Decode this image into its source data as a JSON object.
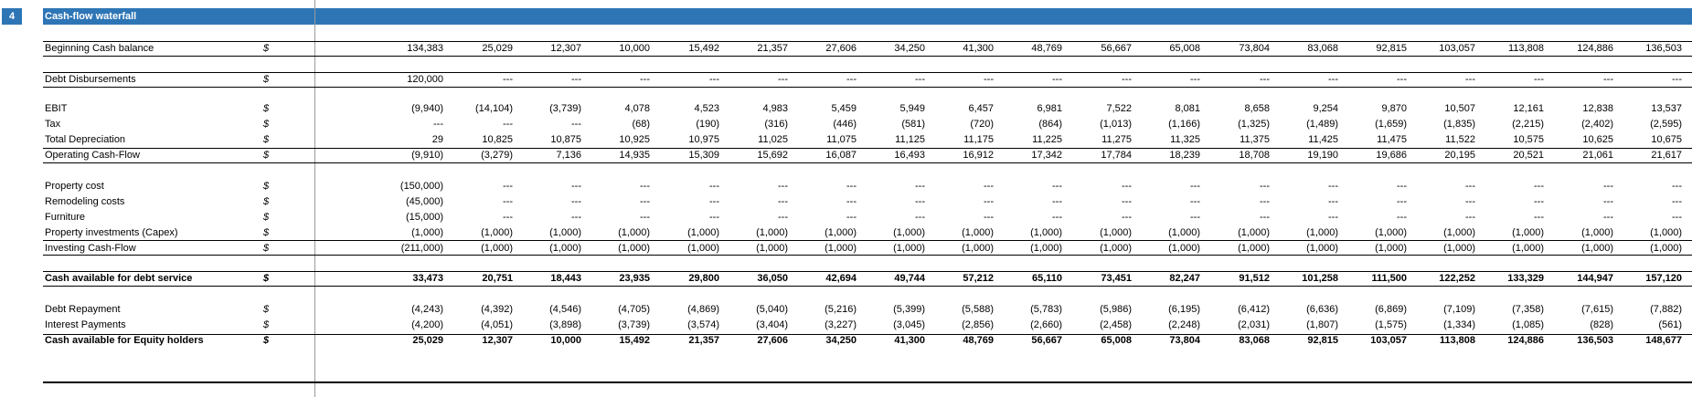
{
  "section_number": "4",
  "title": "Cash-flow waterfall",
  "rows": [
    {
      "id": "beginning-cash",
      "label": "Beginning Cash balance",
      "currency": "$",
      "bold": false,
      "values": [
        "134,383",
        "25,029",
        "12,307",
        "10,000",
        "15,492",
        "21,357",
        "27,606",
        "34,250",
        "41,300",
        "48,769",
        "56,667",
        "65,008",
        "73,804",
        "83,068",
        "92,815",
        "103,057",
        "113,808",
        "124,886",
        "136,503"
      ]
    },
    {
      "id": "debt-disbursements",
      "label": "Debt Disbursements",
      "currency": "$",
      "bold": false,
      "values": [
        "120,000",
        "---",
        "---",
        "---",
        "---",
        "---",
        "---",
        "---",
        "---",
        "---",
        "---",
        "---",
        "---",
        "---",
        "---",
        "---",
        "---",
        "---",
        "---"
      ]
    },
    {
      "id": "ebit",
      "label": "EBIT",
      "currency": "$",
      "bold": false,
      "values": [
        "(9,940)",
        "(14,104)",
        "(3,739)",
        "4,078",
        "4,523",
        "4,983",
        "5,459",
        "5,949",
        "6,457",
        "6,981",
        "7,522",
        "8,081",
        "8,658",
        "9,254",
        "9,870",
        "10,507",
        "12,161",
        "12,838",
        "13,537"
      ]
    },
    {
      "id": "tax",
      "label": "Tax",
      "currency": "$",
      "bold": false,
      "values": [
        "---",
        "---",
        "---",
        "(68)",
        "(190)",
        "(316)",
        "(446)",
        "(581)",
        "(720)",
        "(864)",
        "(1,013)",
        "(1,166)",
        "(1,325)",
        "(1,489)",
        "(1,659)",
        "(1,835)",
        "(2,215)",
        "(2,402)",
        "(2,595)"
      ]
    },
    {
      "id": "total-depreciation",
      "label": "Total Depreciation",
      "currency": "$",
      "bold": false,
      "values": [
        "29",
        "10,825",
        "10,875",
        "10,925",
        "10,975",
        "11,025",
        "11,075",
        "11,125",
        "11,175",
        "11,225",
        "11,275",
        "11,325",
        "11,375",
        "11,425",
        "11,475",
        "11,522",
        "10,575",
        "10,625",
        "10,675"
      ]
    },
    {
      "id": "operating-cash-flow",
      "label": "Operating Cash-Flow",
      "currency": "$",
      "bold": false,
      "values": [
        "(9,910)",
        "(3,279)",
        "7,136",
        "14,935",
        "15,309",
        "15,692",
        "16,087",
        "16,493",
        "16,912",
        "17,342",
        "17,784",
        "18,239",
        "18,708",
        "19,190",
        "19,686",
        "20,195",
        "20,521",
        "21,061",
        "21,617"
      ]
    },
    {
      "id": "property-cost",
      "label": "Property cost",
      "currency": "$",
      "bold": false,
      "values": [
        "(150,000)",
        "---",
        "---",
        "---",
        "---",
        "---",
        "---",
        "---",
        "---",
        "---",
        "---",
        "---",
        "---",
        "---",
        "---",
        "---",
        "---",
        "---",
        "---"
      ]
    },
    {
      "id": "remodeling-costs",
      "label": "Remodeling costs",
      "currency": "$",
      "bold": false,
      "values": [
        "(45,000)",
        "---",
        "---",
        "---",
        "---",
        "---",
        "---",
        "---",
        "---",
        "---",
        "---",
        "---",
        "---",
        "---",
        "---",
        "---",
        "---",
        "---",
        "---"
      ]
    },
    {
      "id": "furniture",
      "label": "Furniture",
      "currency": "$",
      "bold": false,
      "values": [
        "(15,000)",
        "---",
        "---",
        "---",
        "---",
        "---",
        "---",
        "---",
        "---",
        "---",
        "---",
        "---",
        "---",
        "---",
        "---",
        "---",
        "---",
        "---",
        "---"
      ]
    },
    {
      "id": "property-investments",
      "label": "Property investments (Capex)",
      "currency": "$",
      "bold": false,
      "values": [
        "(1,000)",
        "(1,000)",
        "(1,000)",
        "(1,000)",
        "(1,000)",
        "(1,000)",
        "(1,000)",
        "(1,000)",
        "(1,000)",
        "(1,000)",
        "(1,000)",
        "(1,000)",
        "(1,000)",
        "(1,000)",
        "(1,000)",
        "(1,000)",
        "(1,000)",
        "(1,000)",
        "(1,000)"
      ]
    },
    {
      "id": "investing-cash-flow",
      "label": "Investing Cash-Flow",
      "currency": "$",
      "bold": false,
      "values": [
        "(211,000)",
        "(1,000)",
        "(1,000)",
        "(1,000)",
        "(1,000)",
        "(1,000)",
        "(1,000)",
        "(1,000)",
        "(1,000)",
        "(1,000)",
        "(1,000)",
        "(1,000)",
        "(1,000)",
        "(1,000)",
        "(1,000)",
        "(1,000)",
        "(1,000)",
        "(1,000)",
        "(1,000)"
      ]
    },
    {
      "id": "cash-available-debt-service",
      "label": "Cash available for debt service",
      "currency": "$",
      "bold": true,
      "values": [
        "33,473",
        "20,751",
        "18,443",
        "23,935",
        "29,800",
        "36,050",
        "42,694",
        "49,744",
        "57,212",
        "65,110",
        "73,451",
        "82,247",
        "91,512",
        "101,258",
        "111,500",
        "122,252",
        "133,329",
        "144,947",
        "157,120"
      ]
    },
    {
      "id": "debt-repayment",
      "label": "Debt Repayment",
      "currency": "$",
      "bold": false,
      "values": [
        "(4,243)",
        "(4,392)",
        "(4,546)",
        "(4,705)",
        "(4,869)",
        "(5,040)",
        "(5,216)",
        "(5,399)",
        "(5,588)",
        "(5,783)",
        "(5,986)",
        "(6,195)",
        "(6,412)",
        "(6,636)",
        "(6,869)",
        "(7,109)",
        "(7,358)",
        "(7,615)",
        "(7,882)"
      ]
    },
    {
      "id": "interest-payments",
      "label": "Interest Payments",
      "currency": "$",
      "bold": false,
      "values": [
        "(4,200)",
        "(4,051)",
        "(3,898)",
        "(3,739)",
        "(3,574)",
        "(3,404)",
        "(3,227)",
        "(3,045)",
        "(2,856)",
        "(2,660)",
        "(2,458)",
        "(2,248)",
        "(2,031)",
        "(1,807)",
        "(1,575)",
        "(1,334)",
        "(1,085)",
        "(828)",
        "(561)"
      ]
    },
    {
      "id": "cash-available-equity",
      "label": "Cash available for Equity holders",
      "currency": "$",
      "bold": true,
      "values": [
        "25,029",
        "12,307",
        "10,000",
        "15,492",
        "21,357",
        "27,606",
        "34,250",
        "41,300",
        "48,769",
        "56,667",
        "65,008",
        "73,804",
        "83,068",
        "92,815",
        "103,057",
        "113,808",
        "124,886",
        "136,503",
        "148,677"
      ]
    }
  ]
}
